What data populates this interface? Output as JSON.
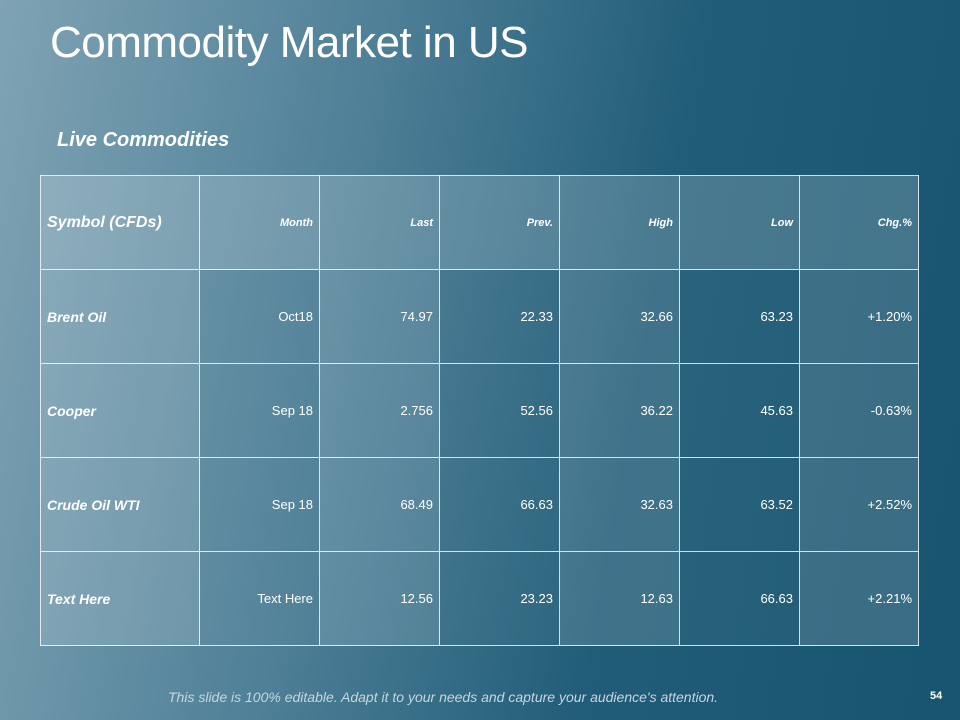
{
  "header": {
    "title": "Commodity Market in US",
    "subtitle": "Live Commodities"
  },
  "table": {
    "columns": [
      "Symbol (CFDs)",
      "Month",
      "Last",
      "Prev.",
      "High",
      "Low",
      "Chg.%"
    ],
    "rows": [
      [
        "Brent Oil",
        "Oct18",
        "74.97",
        "22.33",
        "32.66",
        "63.23",
        "+1.20%"
      ],
      [
        "Cooper",
        "Sep 18",
        "2.756",
        "52.56",
        "36.22",
        "45.63",
        "-0.63%"
      ],
      [
        "Crude Oil WTI",
        "Sep 18",
        "68.49",
        "66.63",
        "32.63",
        "63.52",
        "+2.52%"
      ],
      [
        "Text Here",
        "Text Here",
        "12.56",
        "23.23",
        "12.63",
        "66.63",
        "+2.21%"
      ]
    ]
  },
  "footer": {
    "note": "This slide is 100% editable. Adapt it to your needs and capture your audience's attention.",
    "page_number": "54"
  }
}
